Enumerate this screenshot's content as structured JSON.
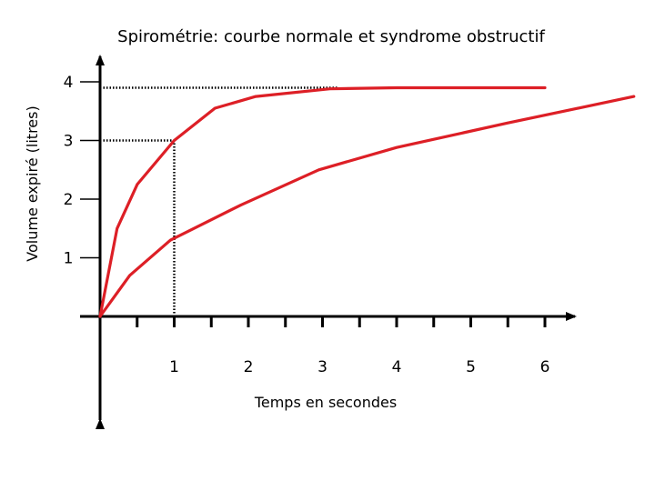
{
  "chart_data": {
    "type": "line",
    "title": "Spirométrie: courbe normale et syndrome obstructif",
    "xlabel": "Temps en secondes",
    "ylabel": "Volume expiré (litres)",
    "x_ticks": [
      "1",
      "2",
      "3",
      "4",
      "5",
      "6"
    ],
    "y_ticks": [
      "1",
      "2",
      "3",
      "4"
    ],
    "xlim": [
      -0.15,
      6.3
    ],
    "ylim": [
      -1.6,
      4.8
    ],
    "grid": false,
    "line_color": "#dd1f26",
    "series": [
      {
        "points": [
          [
            0,
            0
          ],
          [
            0.23,
            1.5
          ],
          [
            0.5,
            2.25
          ],
          [
            1.0,
            3.0
          ],
          [
            1.55,
            3.55
          ],
          [
            2.1,
            3.75
          ],
          [
            3.1,
            3.88
          ],
          [
            4.0,
            3.9
          ],
          [
            6.0,
            3.9
          ]
        ]
      },
      {
        "points": [
          [
            0,
            0
          ],
          [
            0.4,
            0.7
          ],
          [
            0.95,
            1.3
          ],
          [
            1.9,
            1.9
          ],
          [
            2.95,
            2.5
          ],
          [
            4.0,
            2.88
          ],
          [
            5.5,
            3.3
          ],
          [
            7.2,
            3.75
          ]
        ]
      }
    ],
    "guides": [
      {
        "from": [
          0,
          3.0
        ],
        "to": [
          1.0,
          3.0
        ]
      },
      {
        "from": [
          1.0,
          0
        ],
        "to": [
          1.0,
          3.0
        ]
      },
      {
        "from": [
          0,
          3.9
        ],
        "to": [
          3.2,
          3.9
        ]
      }
    ]
  }
}
